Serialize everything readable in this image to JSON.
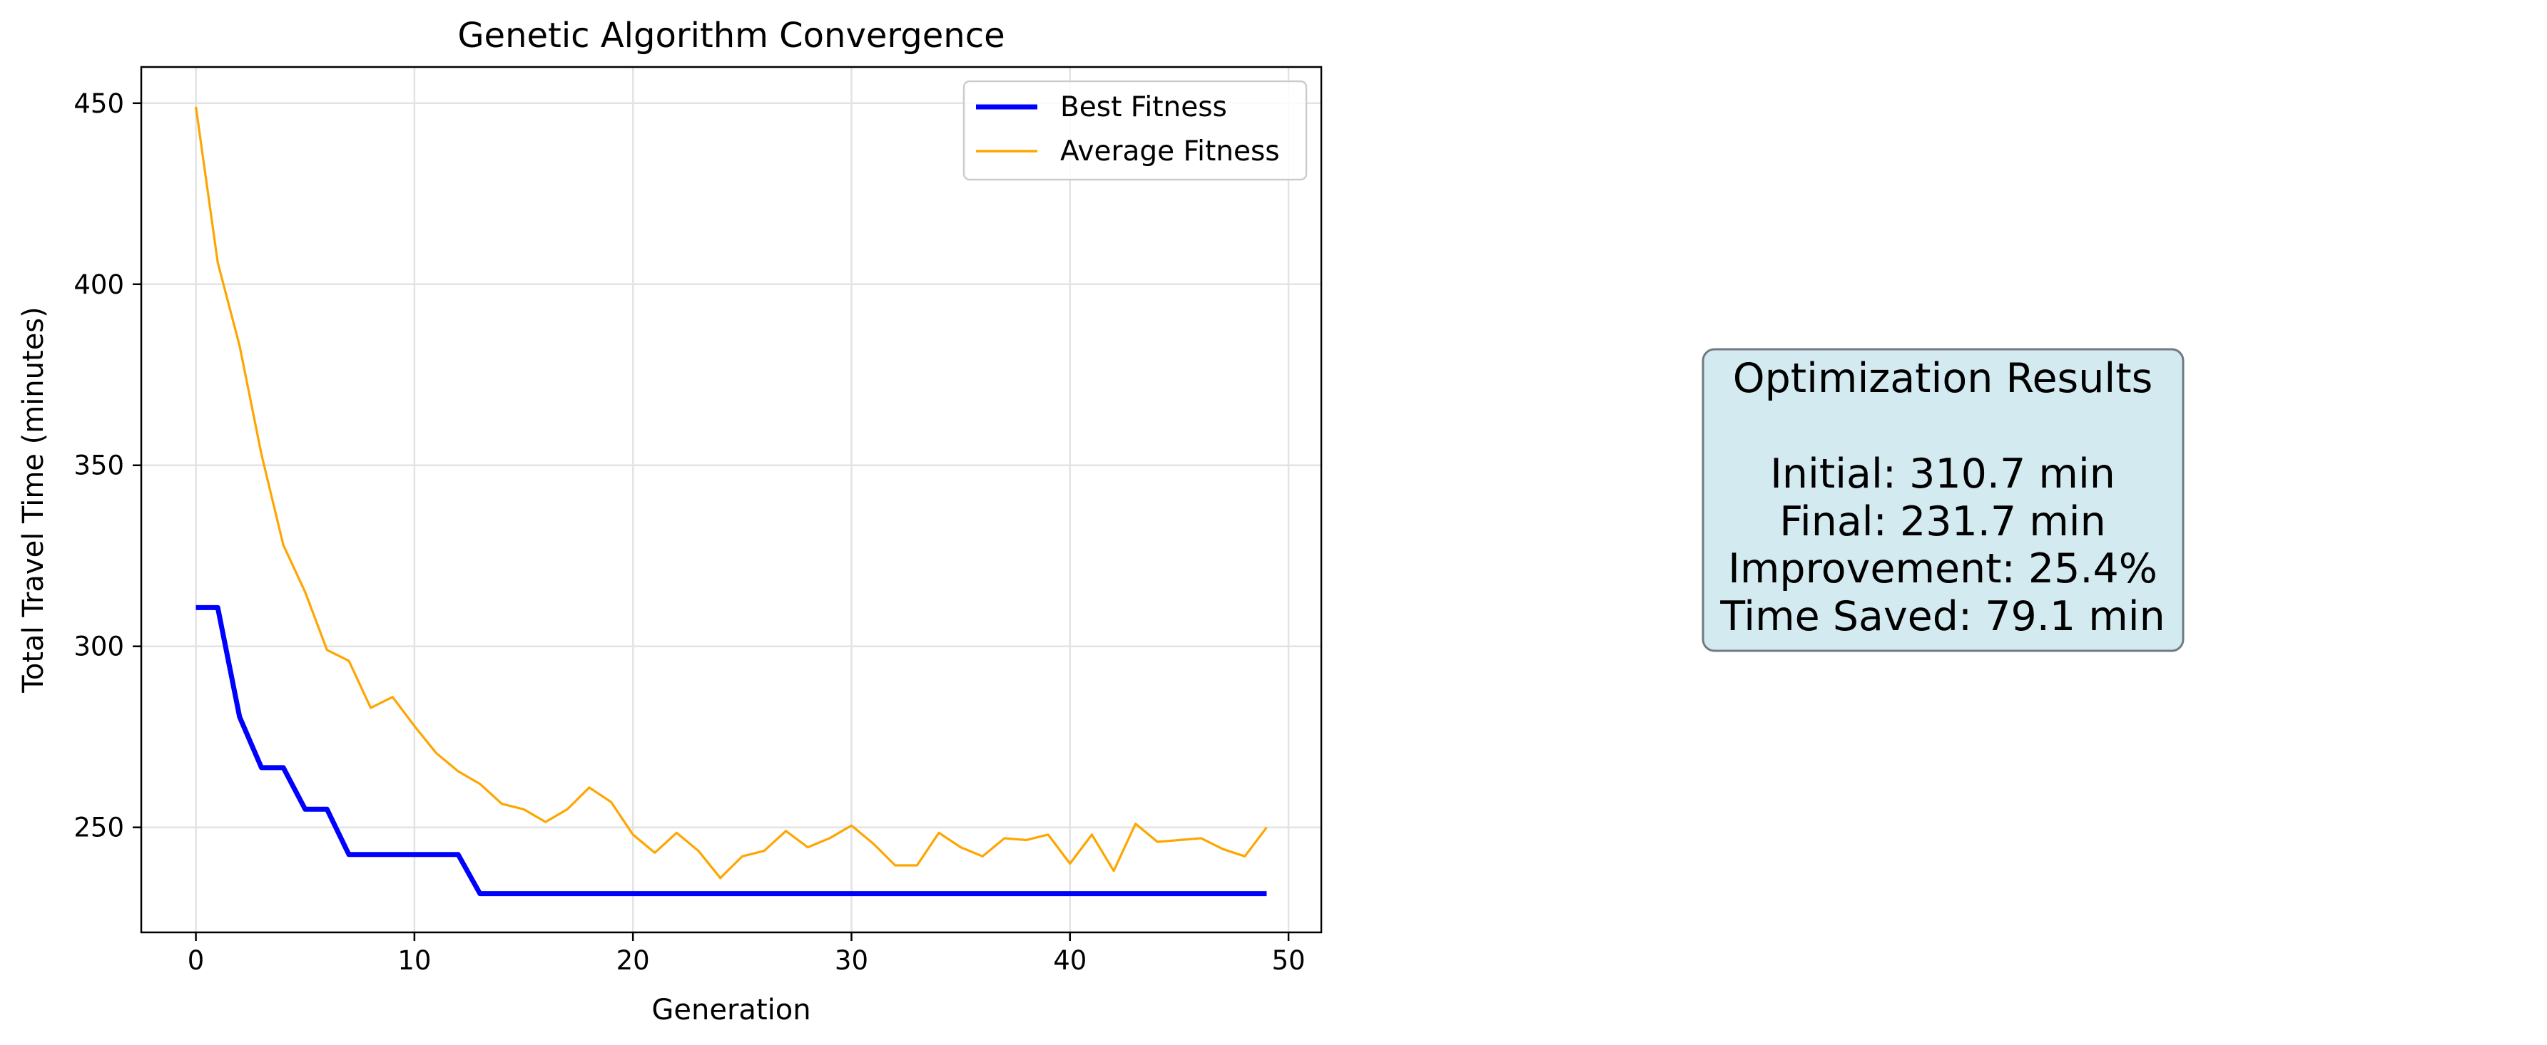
{
  "chart_data": {
    "type": "line",
    "title": "Genetic Algorithm Convergence",
    "xlabel": "Generation",
    "ylabel": "Total Travel Time (minutes)",
    "xlim": [
      -2.5,
      51.5
    ],
    "ylim": [
      221,
      460
    ],
    "xticks": [
      0,
      10,
      20,
      30,
      40,
      50
    ],
    "yticks": [
      250,
      300,
      350,
      400,
      450
    ],
    "grid": true,
    "legend_position": "top-right",
    "x": [
      0,
      1,
      2,
      3,
      4,
      5,
      6,
      7,
      8,
      9,
      10,
      11,
      12,
      13,
      14,
      15,
      16,
      17,
      18,
      19,
      20,
      21,
      22,
      23,
      24,
      25,
      26,
      27,
      28,
      29,
      30,
      31,
      32,
      33,
      34,
      35,
      36,
      37,
      38,
      39,
      40,
      41,
      42,
      43,
      44,
      45,
      46,
      47,
      48,
      49
    ],
    "series": [
      {
        "name": "Best Fitness",
        "color": "#0000ff",
        "values": [
          310.7,
          310.7,
          280.5,
          266.5,
          266.5,
          255.0,
          255.0,
          242.5,
          242.5,
          242.5,
          242.5,
          242.5,
          242.5,
          231.7,
          231.7,
          231.7,
          231.7,
          231.7,
          231.7,
          231.7,
          231.7,
          231.7,
          231.7,
          231.7,
          231.7,
          231.7,
          231.7,
          231.7,
          231.7,
          231.7,
          231.7,
          231.7,
          231.7,
          231.7,
          231.7,
          231.7,
          231.7,
          231.7,
          231.7,
          231.7,
          231.7,
          231.7,
          231.7,
          231.7,
          231.7,
          231.7,
          231.7,
          231.7,
          231.7,
          231.7
        ]
      },
      {
        "name": "Average Fitness",
        "color": "#ffa500",
        "values": [
          449.0,
          406.0,
          383.0,
          353.0,
          328.0,
          315.0,
          299.0,
          296.0,
          283.0,
          286.0,
          278.0,
          270.5,
          265.5,
          262.0,
          256.5,
          255.0,
          251.5,
          255.0,
          261.0,
          257.0,
          248.0,
          243.0,
          248.5,
          243.5,
          236.0,
          242.0,
          243.5,
          249.0,
          244.5,
          247.0,
          250.5,
          245.5,
          239.5,
          239.5,
          248.5,
          244.5,
          242.0,
          247.0,
          246.5,
          248.0,
          240.0,
          248.0,
          238.0,
          251.0,
          246.0,
          246.5,
          247.0,
          244.0,
          242.0,
          250.0
        ]
      }
    ]
  },
  "results": {
    "title": "Optimization Results",
    "initial": "Initial: 310.7 min",
    "final": "Final: 231.7 min",
    "improvement": "Improvement: 25.4%",
    "time_saved": "Time Saved: 79.1 min",
    "background_color": "#d3eaf0",
    "border_color": "#6e7b80"
  }
}
